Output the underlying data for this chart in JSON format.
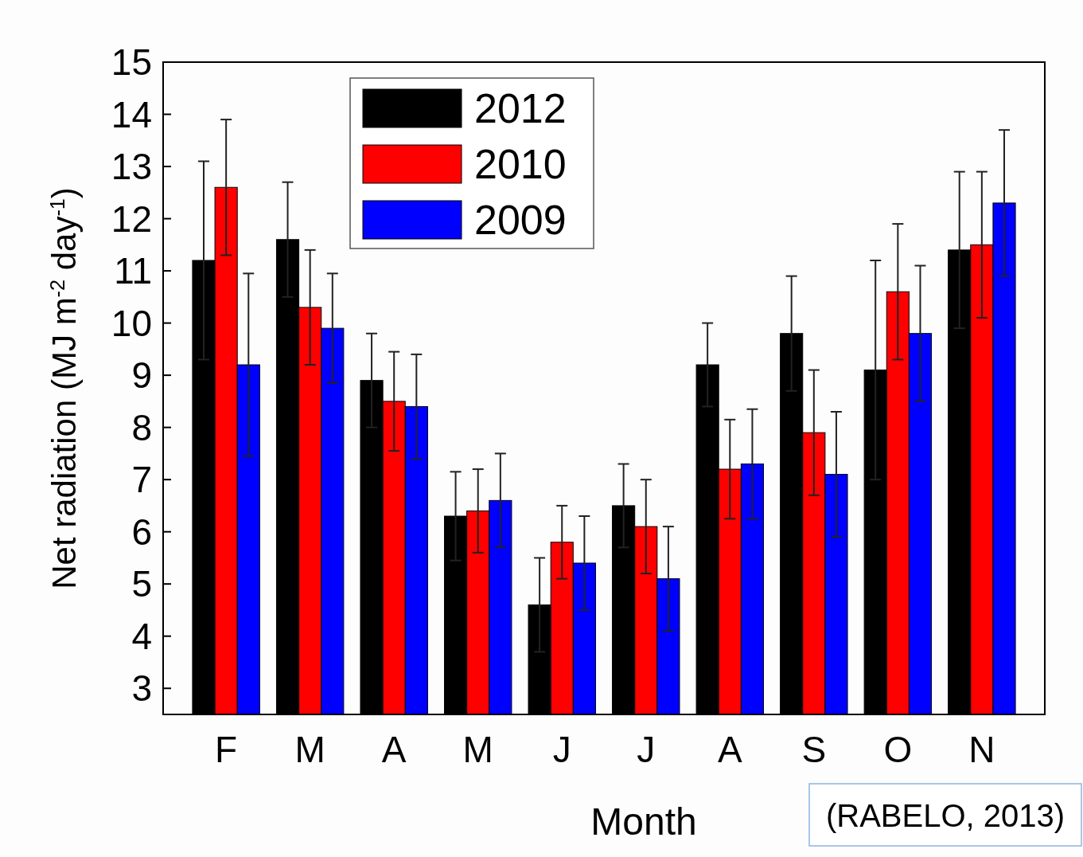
{
  "chart_data": {
    "type": "bar",
    "xlabel": "Month",
    "ylabel": "Net radiation (MJ m$^{-2}$ day$^{-1}$)",
    "categories": [
      "F",
      "M",
      "A",
      "M",
      "J",
      "J",
      "A",
      "S",
      "O",
      "N"
    ],
    "series": [
      {
        "name": "2012",
        "color": "#000000",
        "values": [
          11.2,
          11.6,
          8.9,
          6.3,
          4.6,
          6.5,
          9.2,
          9.8,
          9.1,
          11.4
        ],
        "errors": [
          1.9,
          1.1,
          0.9,
          0.85,
          0.9,
          0.8,
          0.8,
          1.1,
          2.1,
          1.5
        ]
      },
      {
        "name": "2010",
        "color": "#ff0000",
        "values": [
          12.6,
          10.3,
          8.5,
          6.4,
          5.8,
          6.1,
          7.2,
          7.9,
          10.6,
          11.5
        ],
        "errors": [
          1.3,
          1.1,
          0.95,
          0.8,
          0.7,
          0.9,
          0.95,
          1.2,
          1.3,
          1.4
        ]
      },
      {
        "name": "2009",
        "color": "#0000ff",
        "values": [
          9.2,
          9.9,
          8.4,
          6.6,
          5.4,
          5.1,
          7.3,
          7.1,
          9.8,
          12.3
        ],
        "errors": [
          1.75,
          1.05,
          1.0,
          0.9,
          0.9,
          1.0,
          1.05,
          1.2,
          1.3,
          1.4
        ]
      }
    ],
    "ylim": [
      2.5,
      15
    ],
    "yticks": [
      3,
      4,
      5,
      6,
      7,
      8,
      9,
      10,
      11,
      12,
      13,
      14,
      15
    ],
    "grid": false,
    "legend": "top left",
    "annotations": [
      "(RABELO, 2013)"
    ]
  }
}
